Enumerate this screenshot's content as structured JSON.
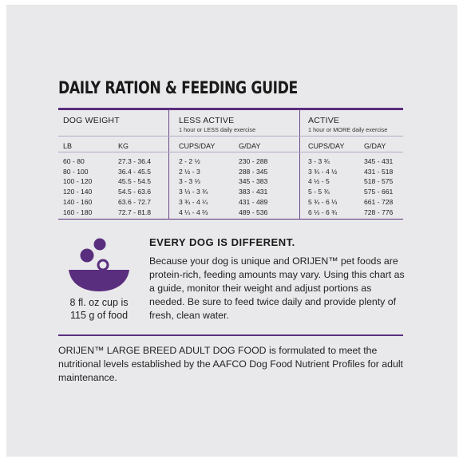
{
  "title": "DAILY RATION & FEEDING GUIDE",
  "table": {
    "col_headers": {
      "dog_weight": "DOG WEIGHT",
      "less_active": "LESS ACTIVE",
      "less_active_sub": "1 hour or LESS daily exercise",
      "active": "ACTIVE",
      "active_sub": "1 hour or MORE daily exercise"
    },
    "units": [
      "LB",
      "KG",
      "CUPS/DAY",
      "G/DAY",
      "CUPS/DAY",
      "G/DAY"
    ],
    "rows": [
      [
        "60 - 80",
        "27.3 - 36.4",
        "2 - 2 ½",
        "230 - 288",
        "3 - 3 ¾",
        "345 - 431"
      ],
      [
        "80 - 100",
        "36.4 - 45.5",
        "2 ½ - 3",
        "288 - 345",
        "3 ¾ - 4 ½",
        "431 - 518"
      ],
      [
        "100 - 120",
        "45.5 - 54.5",
        "3 - 3 ⅓",
        "345 - 383",
        "4 ½ - 5",
        "518 - 575"
      ],
      [
        "120 - 140",
        "54.5 - 63.6",
        "3 ⅓ - 3 ¾",
        "383 - 431",
        "5 - 5 ¾",
        "575 - 661"
      ],
      [
        "140 - 160",
        "63.6 - 72.7",
        "3 ¾ - 4 ¼",
        "431 - 489",
        "5 ¾ - 6 ⅓",
        "661 - 728"
      ],
      [
        "160 - 180",
        "72.7 - 81.8",
        "4 ¼ - 4 ⅔",
        "489 - 536",
        "6 ⅓ - 6 ¾",
        "728 - 776"
      ]
    ]
  },
  "callout": {
    "icon": "food-bowl-icon",
    "cup_caption_line1": "8 fl. oz cup is",
    "cup_caption_line2": "115 g of food",
    "heading": "EVERY DOG IS DIFFERENT.",
    "body": "Because your dog is unique and ORIJEN™ pet foods are protein-rich, feeding amounts may vary. Using this chart as a guide, monitor their weight and adjust portions as needed. Be sure to feed twice daily and provide plenty of fresh, clean water."
  },
  "footer": "ORIJEN™ LARGE BREED ADULT DOG FOOD is formulated to meet the nutritional levels established by the AAFCO Dog Food Nutrient Profiles for adult maintenance.",
  "colors": {
    "accent": "#5a2e7e",
    "panel": "#e9e9eb"
  }
}
